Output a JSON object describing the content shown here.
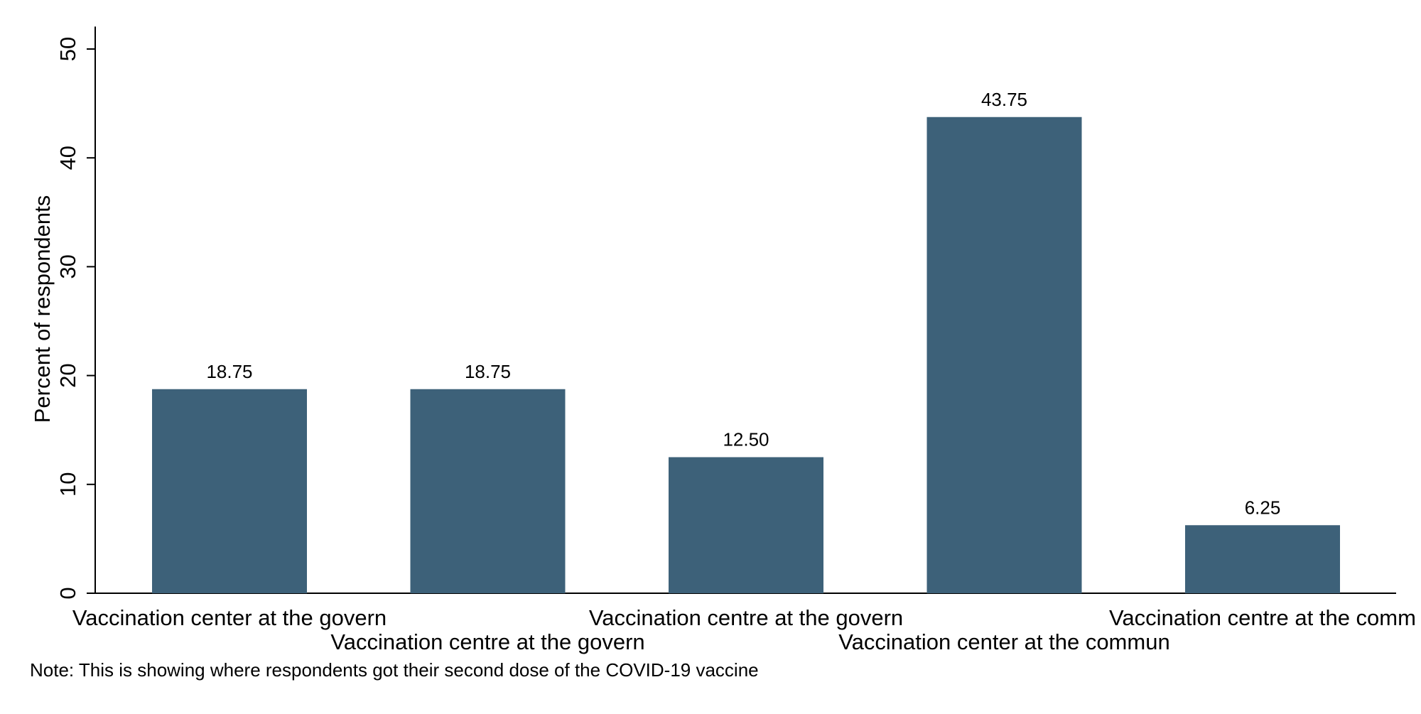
{
  "chart_data": {
    "type": "bar",
    "categories": [
      "Vaccination center at the govern",
      "Vaccination centre at the govern",
      "Vaccination centre at the govern",
      "Vaccination center at the commun",
      "Vaccination centre at the comm"
    ],
    "values": [
      18.75,
      18.75,
      12.5,
      43.75,
      6.25
    ],
    "value_labels": [
      "18.75",
      "18.75",
      "12.50",
      "43.75",
      "6.25"
    ],
    "ylabel": "Percent of respondents",
    "ylim": [
      0,
      52
    ],
    "yticks": [
      0,
      10,
      20,
      30,
      40,
      50
    ],
    "grid": false,
    "bar_color": "#3d6179",
    "note": "Note: This is showing where respondents got their second dose of the COVID-19 vaccine"
  }
}
